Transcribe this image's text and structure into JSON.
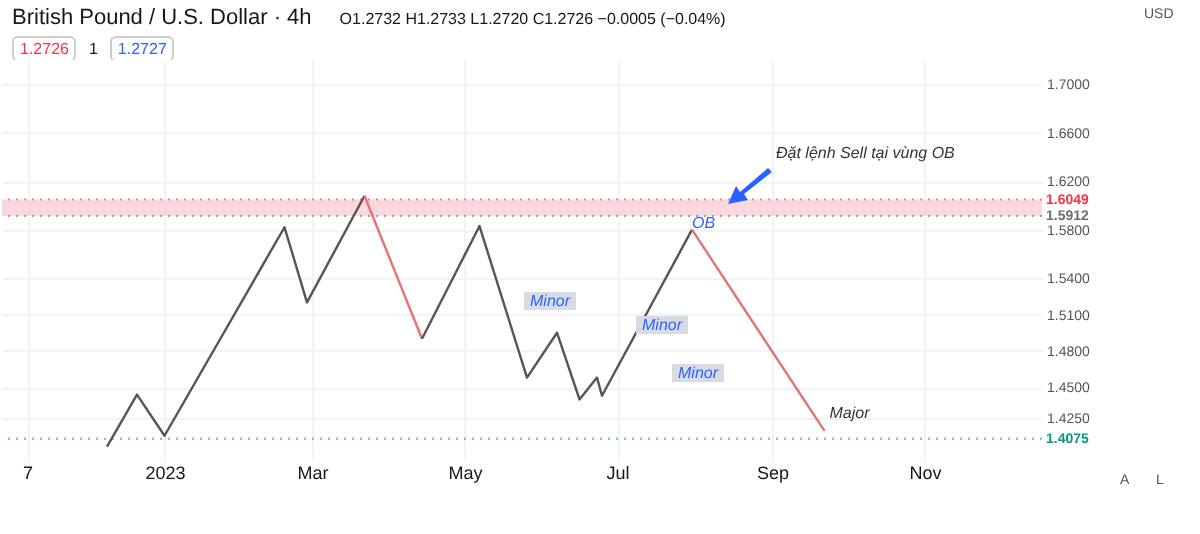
{
  "chart_data": {
    "type": "line",
    "title": "British Pound / U.S. Dollar · 4h",
    "subtitle": "O1.2732 H1.2733 L1.2720 C1.2726 −0.0005 (−0.04%)",
    "series": [
      {
        "color": "#555555",
        "x": [
          "2022-12-09",
          "2022-12-21",
          "2023-01-01",
          "2023-02-18",
          "2023-02-27",
          "2023-03-22"
        ],
        "values": [
          1.401,
          1.444,
          1.41,
          1.582,
          1.52,
          1.608
        ]
      },
      {
        "color": "#e57373",
        "x": [
          "2023-03-22",
          "2023-04-14"
        ],
        "values": [
          1.608,
          1.49
        ]
      },
      {
        "color": "#555555",
        "x": [
          "2023-04-14",
          "2023-05-07",
          "2023-05-26",
          "2023-06-07",
          "2023-06-16",
          "2023-06-23",
          "2023-06-25",
          "2023-07-31"
        ],
        "values": [
          1.49,
          1.583,
          1.458,
          1.495,
          1.44,
          1.458,
          1.443,
          1.58
        ]
      },
      {
        "color": "#e57373",
        "x": [
          "2023-07-31",
          "2023-09-22"
        ],
        "values": [
          1.58,
          1.414
        ]
      }
    ],
    "xlim": [
      "2022-10-28",
      "2023-12-18"
    ],
    "xticks": [
      {
        "value": "2022-11-07",
        "label": "7"
      },
      {
        "value": "2023-01-01",
        "label": "2023"
      },
      {
        "value": "2023-03-01",
        "label": "Mar"
      },
      {
        "value": "2023-05-01",
        "label": "May"
      },
      {
        "value": "2023-07-01",
        "label": "Jul"
      },
      {
        "value": "2023-09-01",
        "label": "Sep"
      },
      {
        "value": "2023-11-01",
        "label": "Nov"
      }
    ],
    "ylim": [
      1.39,
      1.72
    ],
    "yticks": [
      {
        "value": 1.425,
        "label": "1.4250"
      },
      {
        "value": 1.45,
        "label": "1.4500"
      },
      {
        "value": 1.48,
        "label": "1.4800"
      },
      {
        "value": 1.51,
        "label": "1.5100"
      },
      {
        "value": 1.54,
        "label": "1.5400"
      },
      {
        "value": 1.58,
        "label": "1.5800"
      },
      {
        "value": 1.62,
        "label": "1.6200"
      },
      {
        "value": 1.66,
        "label": "1.6600"
      },
      {
        "value": 1.7,
        "label": "1.7000"
      }
    ],
    "ref_lines": [
      {
        "axis": "y",
        "value": 1.6049,
        "label": "1.6049",
        "color": "#f23645",
        "line_style": "dotted"
      },
      {
        "axis": "y",
        "value": 1.5912,
        "label": "1.5912",
        "color": "#6a6d78",
        "line_style": "dotted"
      },
      {
        "axis": "y",
        "value": 1.4075,
        "label": "1.4075",
        "color": "#089981",
        "line_style": "dotted"
      }
    ],
    "bands": [
      {
        "axis": "y",
        "from": 1.5912,
        "to": 1.6049,
        "color": "#f8c8d0"
      }
    ],
    "annotations": [
      "1.2726",
      "1",
      "1.2727",
      "USD",
      "A",
      "L",
      "Minor",
      "Minor",
      "Minor",
      "Đặt lệnh Sell tại vùng OB",
      {
        "text": "OB",
        "x": "2023-07-31",
        "y": 1.585
      },
      {
        "text": "Major",
        "x": "2023-10-02",
        "y": 1.415
      }
    ],
    "grid": true,
    "marker": "none",
    "line_style": "solid"
  }
}
